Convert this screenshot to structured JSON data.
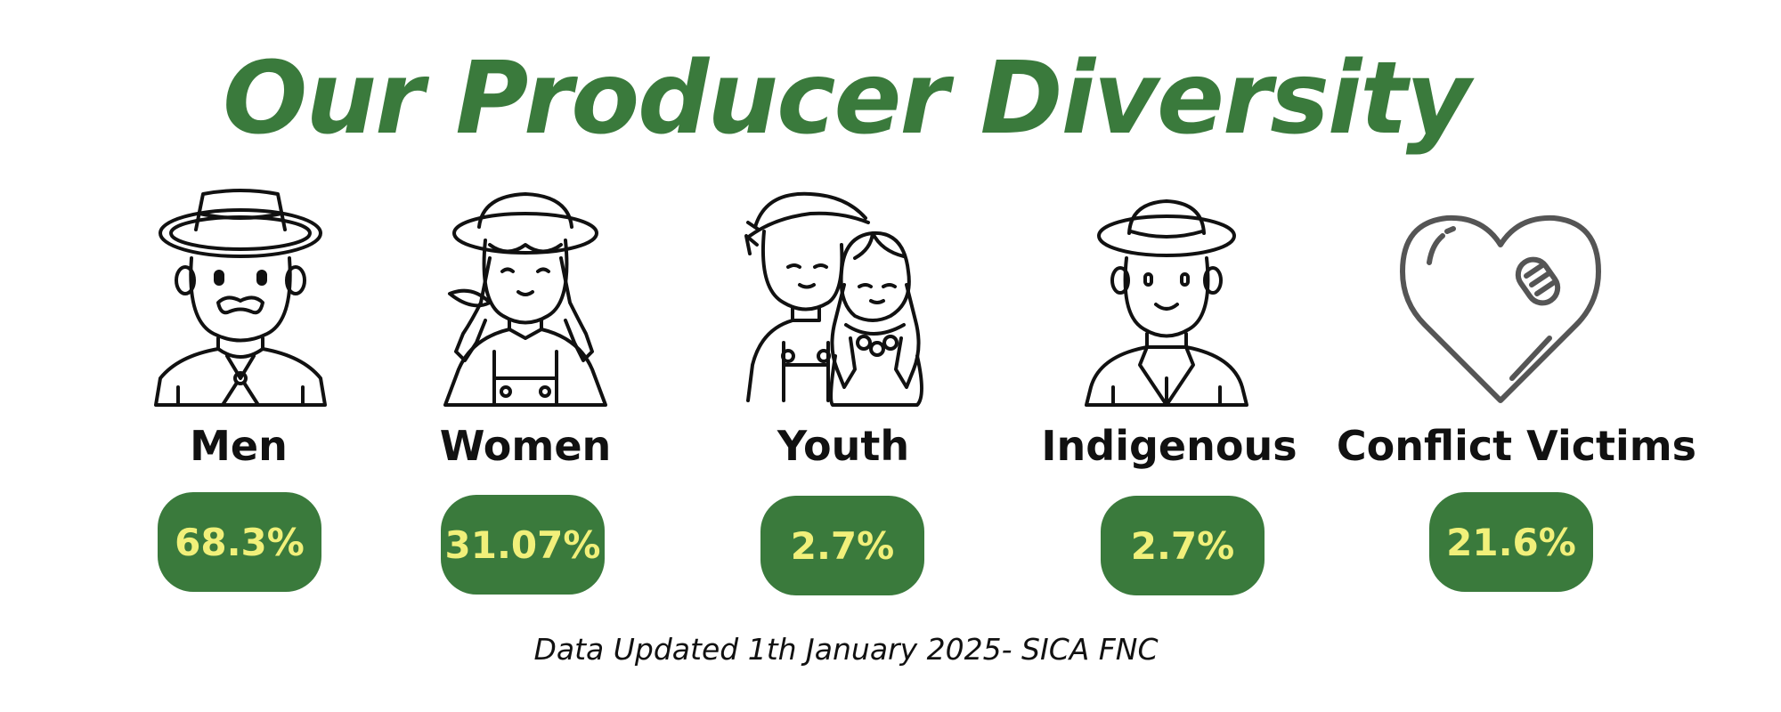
{
  "title": "Our Producer Diversity",
  "footer": "Data Updated 1th January 2025- SICA FNC",
  "colors": {
    "accent": "#3a7a3c",
    "value_text": "#f1f07a",
    "label_text": "#111111",
    "icon_stroke": "#111111",
    "heart_stroke": "#555555"
  },
  "categories": [
    {
      "label": "Men",
      "value": "68.3%",
      "icon": "farmer-man-icon"
    },
    {
      "label": "Women",
      "value": "31.07%",
      "icon": "farmer-woman-icon"
    },
    {
      "label": "Youth",
      "value": "2.7%",
      "icon": "youth-couple-icon"
    },
    {
      "label": "Indigenous",
      "value": "2.7%",
      "icon": "indigenous-man-icon"
    },
    {
      "label": "Conflict Victims",
      "value": "21.6%",
      "icon": "bandaged-heart-icon"
    }
  ]
}
